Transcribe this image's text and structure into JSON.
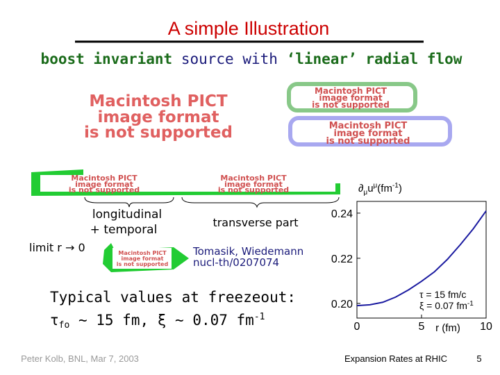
{
  "title": "A simple Illustration",
  "subtitle": [
    "boost invariant",
    " source with ",
    "‘linear’ radial flow"
  ],
  "pict_placeholder": [
    "Macintosh PICT",
    "image format",
    "is not supported"
  ],
  "labels": {
    "longitudinal": [
      "longitudinal",
      "+ temporal"
    ],
    "transverse": "transverse part",
    "limit": "limit  r → 0",
    "reference": [
      "Tomasik,  Wiedemann",
      "nucl-th/0207074"
    ]
  },
  "typical": {
    "heading": "Typical values at freezeout:",
    "formula": [
      "τ",
      "fo",
      " ~ 15 fm, ξ ~ 0.07 fm",
      "-1"
    ]
  },
  "footer": {
    "author": "Peter Kolb, BNL, Mar 7, 2003",
    "topic": "Expansion Rates at RHIC",
    "page": 5
  },
  "chart_data": {
    "type": "line",
    "y_label": [
      "∂",
      "μ",
      "u",
      "μ",
      "(fm",
      "-1",
      ")"
    ],
    "x_label": "r (fm)",
    "annotation": [
      "τ = 15 fm/c",
      "ξ = 0.07 fm",
      "-1"
    ],
    "x": [
      0,
      1,
      2,
      3,
      4,
      5,
      6,
      7,
      8,
      9,
      10
    ],
    "series": [
      {
        "color": "#1a1aa0",
        "values": [
          0.199,
          0.1994,
          0.2005,
          0.2028,
          0.206,
          0.2098,
          0.214,
          0.2195,
          0.226,
          0.233,
          0.241
        ]
      }
    ],
    "xlim": [
      0,
      10
    ],
    "xticks": [
      0,
      5,
      10
    ],
    "ylim": [
      0.1935,
      0.2452
    ],
    "yticks": [
      {
        "value": 0.2,
        "label": "0.20"
      },
      0.22,
      0.24
    ]
  }
}
